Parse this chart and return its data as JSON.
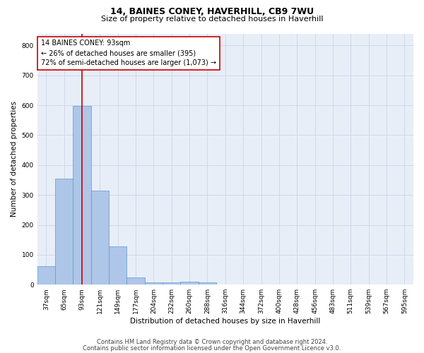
{
  "title1": "14, BAINES CONEY, HAVERHILL, CB9 7WU",
  "title2": "Size of property relative to detached houses in Haverhill",
  "xlabel": "Distribution of detached houses by size in Haverhill",
  "ylabel": "Number of detached properties",
  "categories": [
    "37sqm",
    "65sqm",
    "93sqm",
    "121sqm",
    "149sqm",
    "177sqm",
    "204sqm",
    "232sqm",
    "260sqm",
    "288sqm",
    "316sqm",
    "344sqm",
    "372sqm",
    "400sqm",
    "428sqm",
    "456sqm",
    "483sqm",
    "511sqm",
    "539sqm",
    "567sqm",
    "595sqm"
  ],
  "values": [
    62,
    355,
    597,
    315,
    128,
    25,
    8,
    7,
    10,
    8,
    0,
    0,
    0,
    0,
    0,
    0,
    0,
    0,
    0,
    0,
    0
  ],
  "bar_color": "#aec6e8",
  "bar_edgecolor": "#5b9bd5",
  "property_line_x": 2,
  "property_line_color": "#cc0000",
  "annotation_text": "14 BAINES CONEY: 93sqm\n← 26% of detached houses are smaller (395)\n72% of semi-detached houses are larger (1,073) →",
  "annotation_box_color": "#ffffff",
  "annotation_box_edgecolor": "#cc0000",
  "ylim": [
    0,
    840
  ],
  "yticks": [
    0,
    100,
    200,
    300,
    400,
    500,
    600,
    700,
    800
  ],
  "grid_color": "#d0d8e8",
  "bg_color": "#e8eef8",
  "footer1": "Contains HM Land Registry data © Crown copyright and database right 2024.",
  "footer2": "Contains public sector information licensed under the Open Government Licence v3.0.",
  "title1_fontsize": 9,
  "title2_fontsize": 8,
  "axis_label_fontsize": 7.5,
  "tick_fontsize": 6.5,
  "annotation_fontsize": 7,
  "footer_fontsize": 6
}
